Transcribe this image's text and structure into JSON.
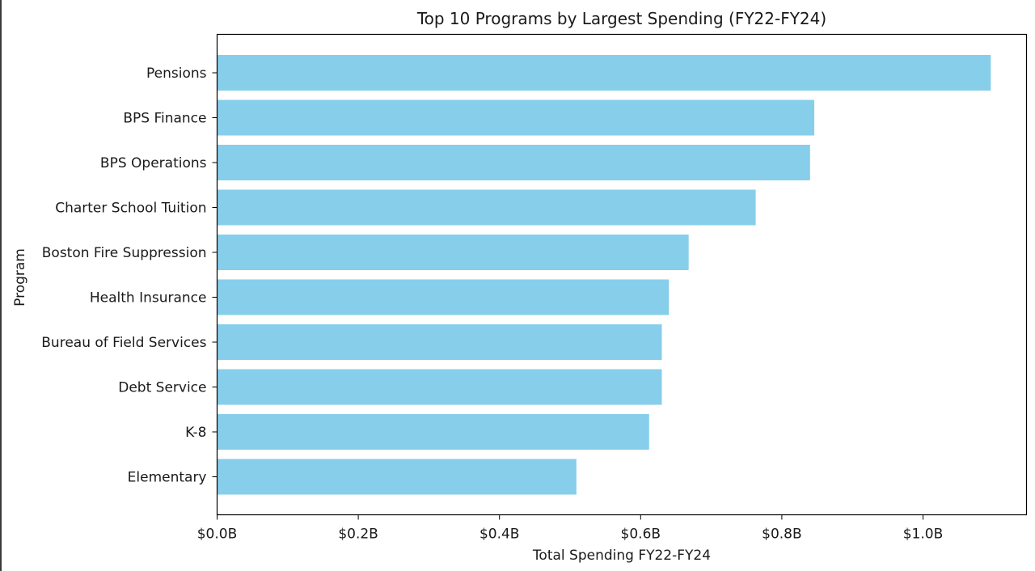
{
  "chart_data": {
    "type": "bar",
    "orientation": "horizontal",
    "title": "Top 10 Programs by Largest Spending (FY22-FY24)",
    "xlabel": "Total Spending FY22-FY24",
    "ylabel": "Program",
    "categories": [
      "Pensions",
      "BPS Finance",
      "BPS Operations",
      "Charter School Tuition",
      "Boston Fire Suppression",
      "Health Insurance",
      "Bureau of Field Services",
      "Debt Service",
      "K-8",
      "Elementary"
    ],
    "values": [
      1.096,
      0.846,
      0.84,
      0.763,
      0.668,
      0.64,
      0.63,
      0.63,
      0.612,
      0.509
    ],
    "value_unit": "billions of dollars",
    "xlim": [
      0,
      1.15
    ],
    "xticks": [
      0,
      0.2,
      0.4,
      0.6,
      0.8,
      1.0
    ],
    "xtick_labels": [
      "$0.0B",
      "$0.2B",
      "$0.4B",
      "$0.6B",
      "$0.8B",
      "$1.0B"
    ],
    "bar_color": "#87ceeb",
    "grid": false,
    "legend": "none"
  }
}
